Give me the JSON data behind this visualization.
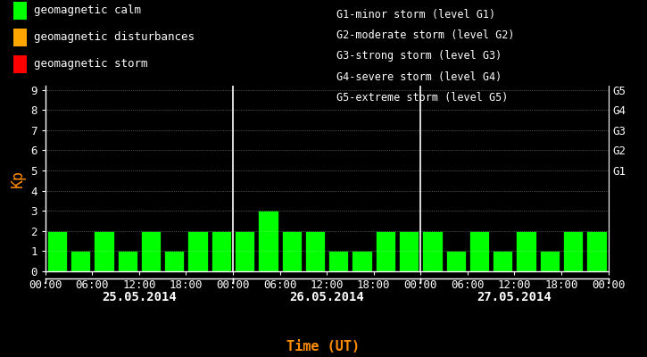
{
  "bg_color": "#000000",
  "bar_color": "#00ff00",
  "axis_color": "#ffffff",
  "ylabel": "Kp",
  "ylabel_color": "#ff8c00",
  "xlabel": "Time (UT)",
  "xlabel_color": "#ff8c00",
  "date_labels": [
    "25.05.2014",
    "26.05.2014",
    "27.05.2014"
  ],
  "right_labels": [
    "G5",
    "G4",
    "G3",
    "G2",
    "G1"
  ],
  "right_label_yvals": [
    9,
    8,
    7,
    6,
    5
  ],
  "right_label_color": "#ffffff",
  "legend_items": [
    {
      "color": "#00ff00",
      "label": "geomagnetic calm"
    },
    {
      "color": "#ffa500",
      "label": "geomagnetic disturbances"
    },
    {
      "color": "#ff0000",
      "label": "geomagnetic storm"
    }
  ],
  "legend_right_lines": [
    "G1-minor storm (level G1)",
    "G2-moderate storm (level G2)",
    "G3-strong storm (level G3)",
    "G4-severe storm (level G4)",
    "G5-extreme storm (level G5)"
  ],
  "kp_values": [
    2,
    1,
    2,
    1,
    2,
    1,
    2,
    2,
    2,
    3,
    2,
    2,
    1,
    1,
    2,
    2,
    2,
    1,
    2,
    1,
    2,
    1,
    2,
    2
  ],
  "ylim": [
    0,
    9
  ],
  "yticks": [
    0,
    1,
    2,
    3,
    4,
    5,
    6,
    7,
    8,
    9
  ],
  "divider_color": "#ffffff",
  "font_color": "#ffffff",
  "font_size": 9,
  "monospace_font": "monospace"
}
